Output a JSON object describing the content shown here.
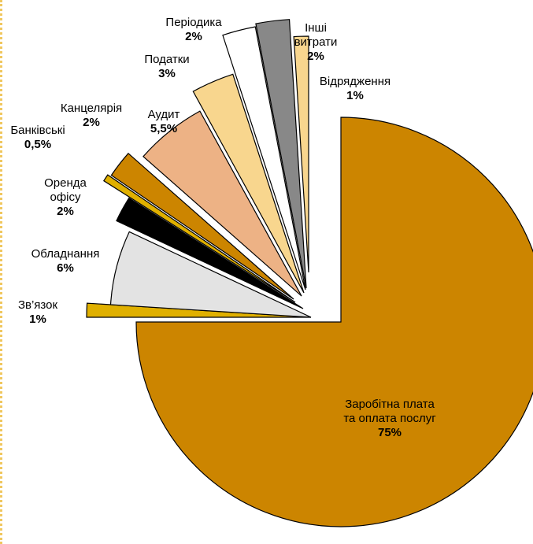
{
  "chart_data": {
    "type": "pie",
    "exploded": true,
    "title": "",
    "slices": [
      {
        "name_lines": [
          "Заробітна плата",
          "та оплата послуг"
        ],
        "label": "75%",
        "value": 75,
        "color": "#cc8500"
      },
      {
        "name_lines": [
          "Зв’язок"
        ],
        "label": "1%",
        "value": 1,
        "color": "#e0b000"
      },
      {
        "name_lines": [
          "Обладнання"
        ],
        "label": "6%",
        "value": 6,
        "color": "#e3e3e3"
      },
      {
        "name_lines": [
          "Оренда",
          "офісу"
        ],
        "label": "2%",
        "value": 2,
        "color": "#000000"
      },
      {
        "name_lines": [
          "Банківські"
        ],
        "label": "0,5%",
        "value": 0.5,
        "color": "#e0b000"
      },
      {
        "name_lines": [
          "Канцелярія"
        ],
        "label": "2%",
        "value": 2,
        "color": "#cc8500"
      },
      {
        "name_lines": [
          "Аудит"
        ],
        "label": "5,5%",
        "value": 5.5,
        "color": "#edb285"
      },
      {
        "name_lines": [
          "Податки"
        ],
        "label": "3%",
        "value": 3,
        "color": "#f8d68e"
      },
      {
        "name_lines": [
          "Періодика"
        ],
        "label": "2%",
        "value": 2,
        "color": "#ffffff"
      },
      {
        "name_lines": [
          "Інші",
          "витрати"
        ],
        "label": "2%",
        "value": 2,
        "color": "#888888"
      },
      {
        "name_lines": [
          "Відрядження"
        ],
        "label": "1%",
        "value": 1,
        "color": "#f8d68e"
      }
    ]
  }
}
